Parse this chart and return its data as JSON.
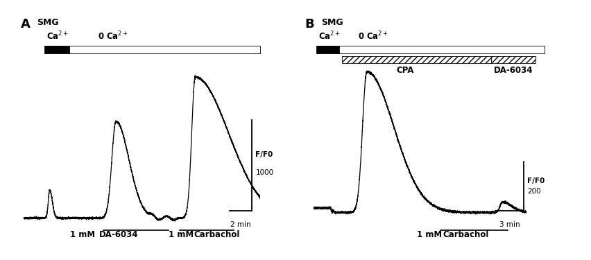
{
  "bg_color": "#ffffff",
  "panel_A": {
    "label": "A",
    "subtitle": "SMG",
    "annotation1_pre": "1 mM ",
    "annotation1_bar": "DA-6034",
    "annotation2_pre": "1 mM ",
    "annotation2_bar": "Carbachol",
    "scale_y": "F/F0",
    "scale_val": "1000",
    "scale_t": "2 min"
  },
  "panel_B": {
    "label": "B",
    "subtitle": "SMG",
    "cpa_label": "CPA",
    "da6034_label": "DA-6034",
    "annotation_pre": "1 mM ",
    "annotation_bar": "Carbachol",
    "scale_y": "F/F0",
    "scale_val": "200",
    "scale_t": "3 min"
  }
}
